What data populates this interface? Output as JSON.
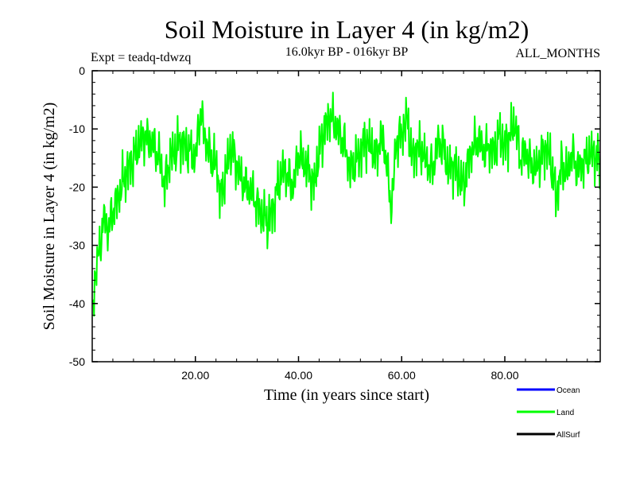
{
  "chart_data": {
    "type": "line",
    "title": "Soil Moisture in Layer 4 (in kg/m2)",
    "subtitle_left": "Expt = teadq-tdwzq",
    "subtitle_center": "16.0kyr BP - 016kyr BP",
    "subtitle_right": "ALL_MONTHS",
    "xlabel": "Time (in years since start)",
    "ylabel": "Soil Moisture in Layer 4 (in kg/m2)",
    "xlim": [
      0,
      98.5
    ],
    "ylim": [
      -50,
      0
    ],
    "x_ticks": [
      20,
      40,
      60,
      80
    ],
    "x_tick_labels": [
      "20.00",
      "40.00",
      "60.00",
      "80.00"
    ],
    "y_ticks": [
      0,
      -10,
      -20,
      -30,
      -40,
      -50
    ],
    "y_tick_labels": [
      "0",
      "-10",
      "-20",
      "-30",
      "-40",
      "-50"
    ],
    "legend": [
      {
        "name": "Ocean",
        "color": "#0000ff"
      },
      {
        "name": "Land",
        "color": "#00ff00"
      },
      {
        "name": "AllSurf",
        "color": "#000000"
      }
    ],
    "series": [
      {
        "name": "Land",
        "color": "#00ff00",
        "x": [
          0,
          0.5,
          1,
          1.5,
          2,
          2.5,
          3,
          3.5,
          4,
          5,
          6,
          7,
          8,
          9,
          10,
          11,
          12,
          13,
          14,
          15,
          16,
          17,
          18,
          19,
          20,
          21,
          22,
          23,
          24,
          25,
          26,
          27,
          28,
          29,
          30,
          31,
          32,
          33,
          34,
          35,
          36,
          37,
          38,
          39,
          40,
          41,
          42,
          43,
          44,
          45,
          46,
          47,
          48,
          49,
          50,
          51,
          52,
          53,
          54,
          55,
          56,
          57,
          58,
          59,
          60,
          61,
          62,
          63,
          64,
          65,
          66,
          67,
          68,
          69,
          70,
          71,
          72,
          73,
          74,
          75,
          76,
          77,
          78,
          79,
          80,
          81,
          82,
          83,
          84,
          85,
          86,
          87,
          88,
          89,
          90,
          91,
          92,
          93,
          94,
          95,
          96,
          97,
          98,
          98.5
        ],
        "values": [
          -42,
          -36,
          -33,
          -30,
          -27,
          -25,
          -28,
          -26,
          -24,
          -22,
          -19,
          -17,
          -15,
          -13,
          -11,
          -12,
          -13,
          -15,
          -20,
          -15,
          -14,
          -12,
          -13,
          -14,
          -15,
          -7,
          -12,
          -15,
          -16,
          -22,
          -17,
          -13,
          -16,
          -19,
          -20,
          -21,
          -23,
          -25,
          -26,
          -24,
          -20,
          -17,
          -18,
          -20,
          -14,
          -16,
          -17,
          -20,
          -14,
          -10,
          -8,
          -9,
          -11,
          -13,
          -17,
          -16,
          -14,
          -12,
          -13,
          -15,
          -11,
          -15,
          -24,
          -12,
          -11,
          -8,
          -15,
          -13,
          -14,
          -16,
          -17,
          -12,
          -13,
          -17,
          -16,
          -18,
          -20,
          -15,
          -13,
          -12,
          -14,
          -13,
          -14,
          -11,
          -13,
          -11,
          -9,
          -15,
          -14,
          -16,
          -17,
          -15,
          -13,
          -16,
          -22,
          -16,
          -18,
          -14,
          -17,
          -16,
          -15,
          -14,
          -15,
          -16
        ]
      }
    ]
  }
}
